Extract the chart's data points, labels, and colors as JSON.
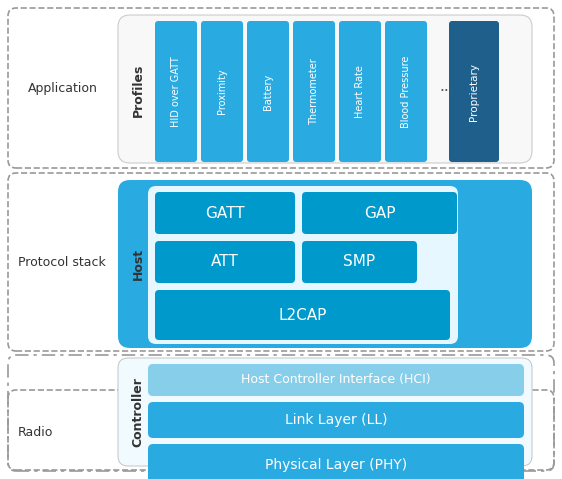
{
  "fig_width": 5.62,
  "fig_height": 4.79,
  "dpi": 100,
  "bg_color": "#ffffff",
  "light_blue": "#29ABE2",
  "mid_blue": "#0099CC",
  "hci_color": "#87CEEB",
  "proprietary_blue": "#1F5F8B",
  "profiles": [
    "HID over GATT",
    "Proximity",
    "Battery",
    "Thermometer",
    "Heart Rate",
    "Blood Pressure"
  ],
  "section_label_color": "#333333",
  "dashed_color": "#999999",
  "white_bg": "#ffffff",
  "inner_bg": "#f5f5f5"
}
